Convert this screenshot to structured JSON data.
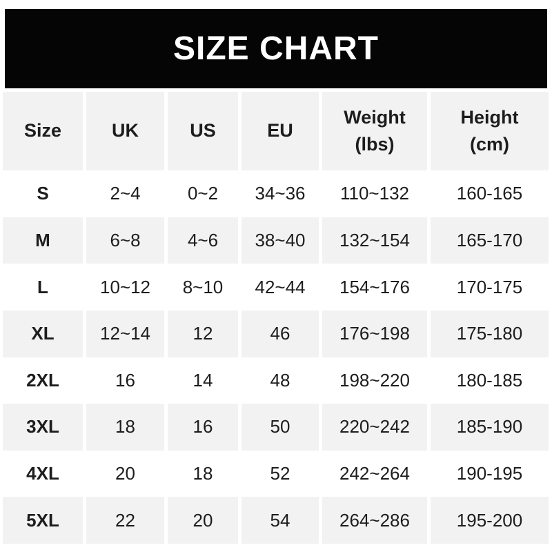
{
  "banner": {
    "title": "SIZE CHART"
  },
  "colors": {
    "banner_bg": "#050505",
    "banner_text": "#ffffff",
    "stripe_bg": "#f2f2f2",
    "row_bg": "#ffffff",
    "text": "#1d1d1f"
  },
  "table": {
    "headers": [
      {
        "label": "Size",
        "sub": ""
      },
      {
        "label": "UK",
        "sub": ""
      },
      {
        "label": "US",
        "sub": ""
      },
      {
        "label": "EU",
        "sub": ""
      },
      {
        "label": "Weight",
        "sub": "(lbs)"
      },
      {
        "label": "Height",
        "sub": "(cm)"
      }
    ]
  },
  "chart_data": {
    "type": "table",
    "title": "SIZE CHART",
    "columns": [
      "Size",
      "UK",
      "US",
      "EU",
      "Weight (lbs)",
      "Height (cm)"
    ],
    "rows": [
      [
        "S",
        "2~4",
        "0~2",
        "34~36",
        "110~132",
        "160-165"
      ],
      [
        "M",
        "6~8",
        "4~6",
        "38~40",
        "132~154",
        "165-170"
      ],
      [
        "L",
        "10~12",
        "8~10",
        "42~44",
        "154~176",
        "170-175"
      ],
      [
        "XL",
        "12~14",
        "12",
        "46",
        "176~198",
        "175-180"
      ],
      [
        "2XL",
        "16",
        "14",
        "48",
        "198~220",
        "180-185"
      ],
      [
        "3XL",
        "18",
        "16",
        "50",
        "220~242",
        "185-190"
      ],
      [
        "4XL",
        "20",
        "18",
        "52",
        "242~264",
        "190-195"
      ],
      [
        "5XL",
        "22",
        "20",
        "54",
        "264~286",
        "195-200"
      ]
    ]
  }
}
